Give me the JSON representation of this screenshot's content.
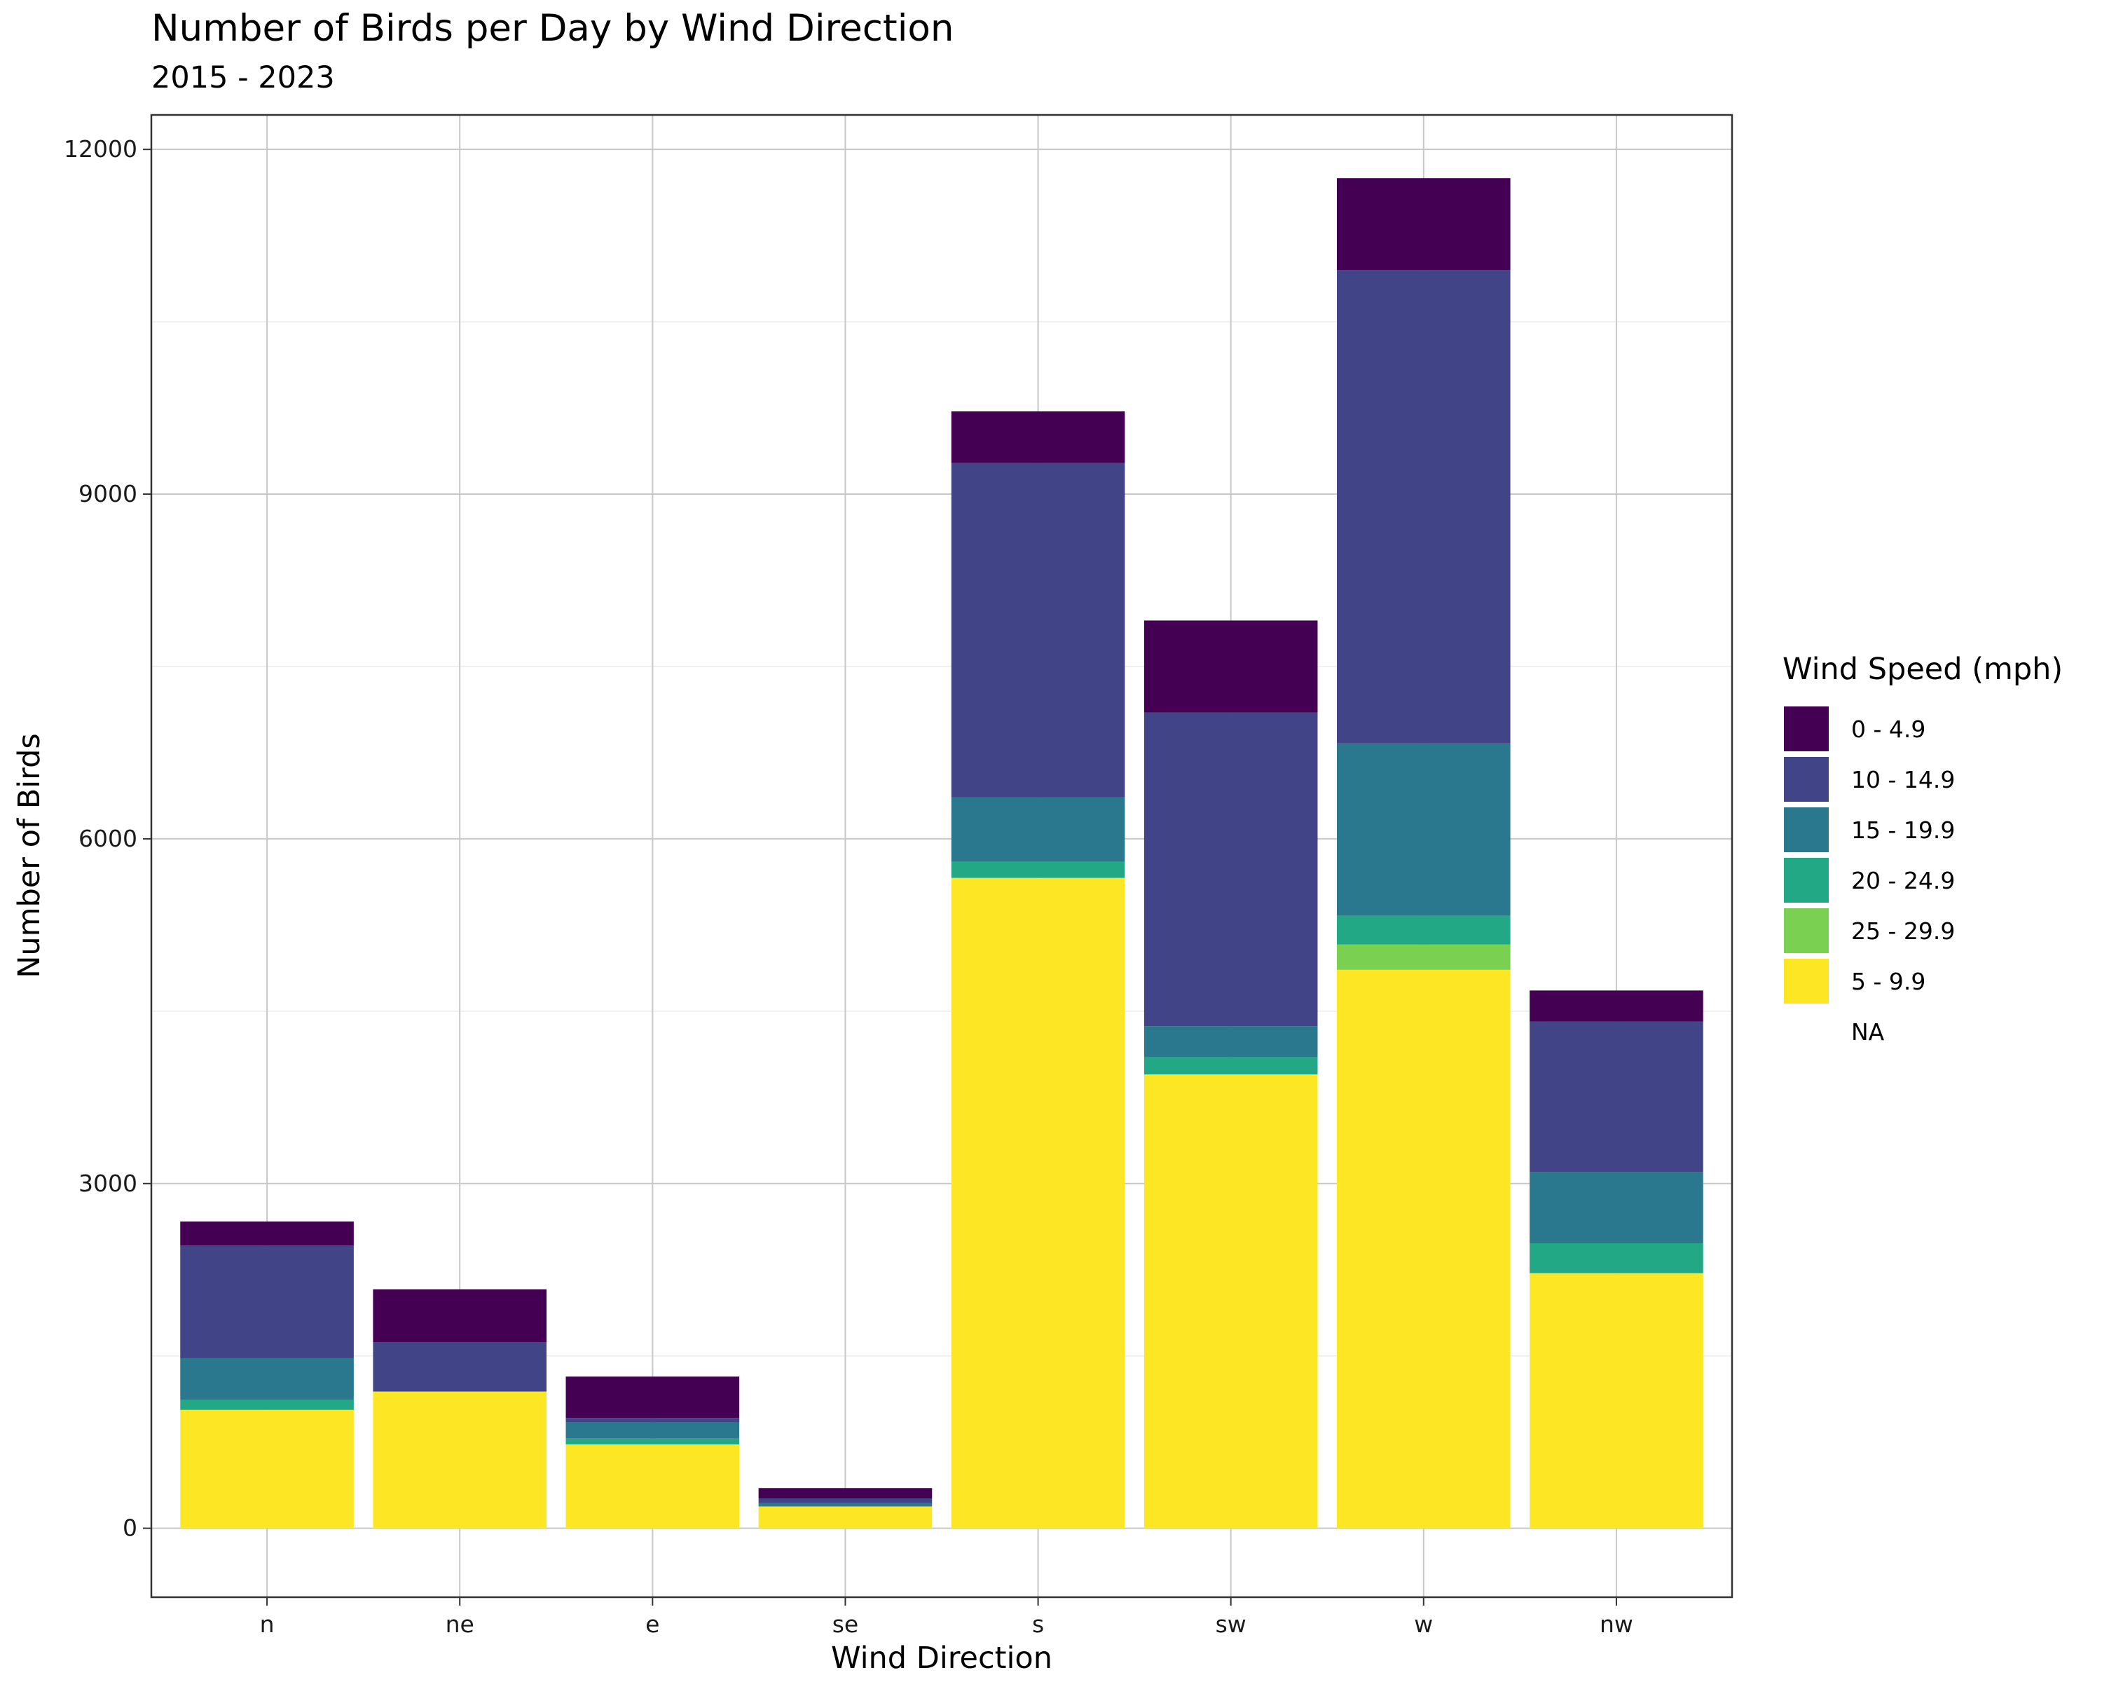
{
  "chart_data": {
    "type": "bar",
    "stacked": true,
    "title": "Number of Birds per Day by Wind Direction",
    "subtitle": "2015 - 2023",
    "xlabel": "Wind Direction",
    "ylabel": "Number of Birds",
    "categories": [
      "n",
      "ne",
      "e",
      "se",
      "s",
      "sw",
      "w",
      "nw"
    ],
    "ylim": [
      -600,
      12300
    ],
    "yticks": [
      0,
      3000,
      6000,
      9000,
      12000
    ],
    "grid": true,
    "legend_title": "Wind Speed (mph)",
    "legend_position": "right",
    "legend": [
      {
        "label": "0 - 4.9",
        "color": "#440154"
      },
      {
        "label": "10 - 14.9",
        "color": "#414487"
      },
      {
        "label": "15 - 19.9",
        "color": "#2a788e"
      },
      {
        "label": "20 - 24.9",
        "color": "#22a884"
      },
      {
        "label": "25 - 29.9",
        "color": "#7ad151"
      },
      {
        "label": "5 - 9.9",
        "color": "#fde725"
      },
      {
        "label": "NA",
        "color": ""
      }
    ],
    "stack_order_bottom_to_top": [
      "5 - 9.9",
      "25 - 29.9",
      "20 - 24.9",
      "15 - 19.9",
      "10 - 14.9",
      "0 - 4.9"
    ],
    "series": [
      {
        "name": "5 - 9.9",
        "color": "#fde725",
        "values": [
          1030,
          1190,
          730,
          190,
          5660,
          3950,
          4860,
          2220
        ]
      },
      {
        "name": "25 - 29.9",
        "color": "#7ad151",
        "values": [
          0,
          0,
          0,
          0,
          0,
          0,
          220,
          0
        ]
      },
      {
        "name": "20 - 24.9",
        "color": "#22a884",
        "values": [
          90,
          0,
          50,
          0,
          140,
          150,
          250,
          260
        ]
      },
      {
        "name": "15 - 19.9",
        "color": "#2a788e",
        "values": [
          360,
          0,
          140,
          30,
          560,
          270,
          1500,
          620
        ]
      },
      {
        "name": "10 - 14.9",
        "color": "#414487",
        "values": [
          980,
          430,
          40,
          40,
          2910,
          2730,
          4120,
          1310
        ]
      },
      {
        "name": "0 - 4.9",
        "color": "#440154",
        "values": [
          210,
          460,
          360,
          90,
          450,
          800,
          800,
          270
        ]
      }
    ]
  }
}
